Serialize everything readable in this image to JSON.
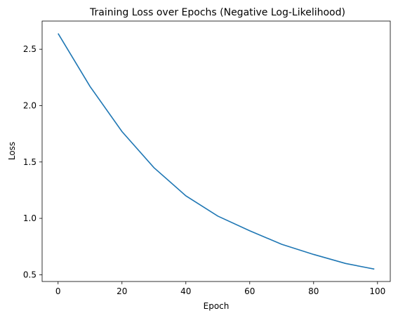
{
  "chart_data": {
    "type": "line",
    "title": "Training Loss over Epochs (Negative Log-Likelihood)",
    "xlabel": "Epoch",
    "ylabel": "Loss",
    "xlim": [
      -5,
      104
    ],
    "ylim": [
      0.44,
      2.75
    ],
    "xticks": [
      0,
      20,
      40,
      60,
      80,
      100
    ],
    "yticks": [
      0.5,
      1.0,
      1.5,
      2.0,
      2.5
    ],
    "xtick_labels": [
      "0",
      "20",
      "40",
      "60",
      "80",
      "100"
    ],
    "ytick_labels": [
      "0.5",
      "1.0",
      "1.5",
      "2.0",
      "2.5"
    ],
    "grid": false,
    "series": [
      {
        "color": "#1f77b4",
        "x": [
          0,
          10,
          20,
          30,
          40,
          50,
          60,
          70,
          80,
          90,
          99
        ],
        "y": [
          2.64,
          2.17,
          1.77,
          1.45,
          1.2,
          1.02,
          0.89,
          0.77,
          0.68,
          0.6,
          0.55
        ]
      }
    ]
  }
}
